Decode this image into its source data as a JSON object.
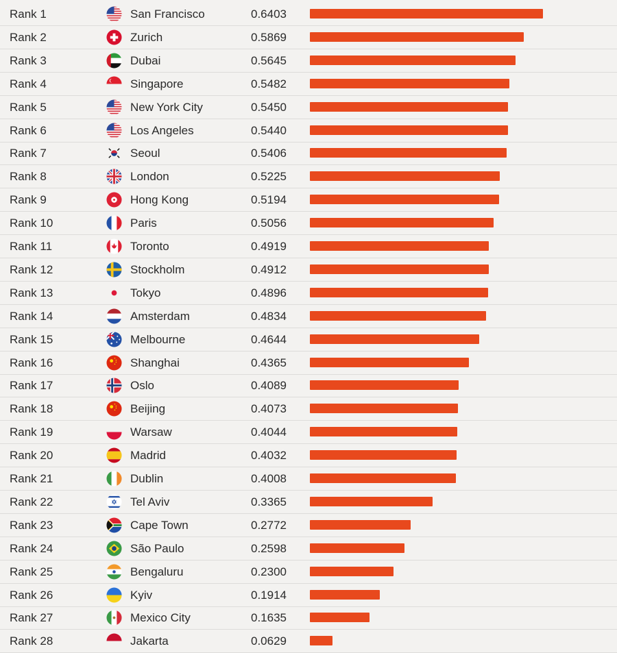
{
  "chart_data": {
    "type": "bar",
    "orientation": "horizontal",
    "title": "",
    "xlabel": "",
    "ylabel": "",
    "xlim": [
      0,
      1.0
    ],
    "grid": false,
    "bar_color": "#e8491d",
    "rows": [
      {
        "rank": "Rank 1",
        "city": "San Francisco",
        "flag": "us-flag-icon",
        "value": 0.6403,
        "label": "0.6403"
      },
      {
        "rank": "Rank 2",
        "city": "Zurich",
        "flag": "switzerland-flag-icon",
        "value": 0.5869,
        "label": "0.5869"
      },
      {
        "rank": "Rank 3",
        "city": "Dubai",
        "flag": "uae-flag-icon",
        "value": 0.5645,
        "label": "0.5645"
      },
      {
        "rank": "Rank 4",
        "city": "Singapore",
        "flag": "singapore-flag-icon",
        "value": 0.5482,
        "label": "0.5482"
      },
      {
        "rank": "Rank 5",
        "city": "New York City",
        "flag": "us-flag-icon",
        "value": 0.545,
        "label": "0.5450"
      },
      {
        "rank": "Rank 6",
        "city": "Los Angeles",
        "flag": "us-flag-icon",
        "value": 0.544,
        "label": "0.5440"
      },
      {
        "rank": "Rank 7",
        "city": "Seoul",
        "flag": "south-korea-flag-icon",
        "value": 0.5406,
        "label": "0.5406"
      },
      {
        "rank": "Rank 8",
        "city": "London",
        "flag": "uk-flag-icon",
        "value": 0.5225,
        "label": "0.5225"
      },
      {
        "rank": "Rank 9",
        "city": "Hong Kong",
        "flag": "hong-kong-flag-icon",
        "value": 0.5194,
        "label": "0.5194"
      },
      {
        "rank": "Rank 10",
        "city": "Paris",
        "flag": "france-flag-icon",
        "value": 0.5056,
        "label": "0.5056"
      },
      {
        "rank": "Rank 11",
        "city": "Toronto",
        "flag": "canada-flag-icon",
        "value": 0.4919,
        "label": "0.4919"
      },
      {
        "rank": "Rank 12",
        "city": "Stockholm",
        "flag": "sweden-flag-icon",
        "value": 0.4912,
        "label": "0.4912"
      },
      {
        "rank": "Rank 13",
        "city": "Tokyo",
        "flag": "japan-flag-icon",
        "value": 0.4896,
        "label": "0.4896"
      },
      {
        "rank": "Rank 14",
        "city": "Amsterdam",
        "flag": "netherlands-flag-icon",
        "value": 0.4834,
        "label": "0.4834"
      },
      {
        "rank": "Rank 15",
        "city": "Melbourne",
        "flag": "australia-flag-icon",
        "value": 0.4644,
        "label": "0.4644"
      },
      {
        "rank": "Rank 16",
        "city": "Shanghai",
        "flag": "china-flag-icon",
        "value": 0.4365,
        "label": "0.4365"
      },
      {
        "rank": "Rank 17",
        "city": "Oslo",
        "flag": "norway-flag-icon",
        "value": 0.4089,
        "label": "0.4089"
      },
      {
        "rank": "Rank 18",
        "city": "Beijing",
        "flag": "china-flag-icon",
        "value": 0.4073,
        "label": "0.4073"
      },
      {
        "rank": "Rank 19",
        "city": "Warsaw",
        "flag": "poland-flag-icon",
        "value": 0.4044,
        "label": "0.4044"
      },
      {
        "rank": "Rank 20",
        "city": "Madrid",
        "flag": "spain-flag-icon",
        "value": 0.4032,
        "label": "0.4032"
      },
      {
        "rank": "Rank 21",
        "city": "Dublin",
        "flag": "ireland-flag-icon",
        "value": 0.4008,
        "label": "0.4008"
      },
      {
        "rank": "Rank 22",
        "city": "Tel Aviv",
        "flag": "israel-flag-icon",
        "value": 0.3365,
        "label": "0.3365"
      },
      {
        "rank": "Rank 23",
        "city": "Cape Town",
        "flag": "south-africa-flag-icon",
        "value": 0.2772,
        "label": "0.2772"
      },
      {
        "rank": "Rank 24",
        "city": "São Paulo",
        "flag": "brazil-flag-icon",
        "value": 0.2598,
        "label": "0.2598"
      },
      {
        "rank": "Rank 25",
        "city": "Bengaluru",
        "flag": "india-flag-icon",
        "value": 0.23,
        "label": "0.2300"
      },
      {
        "rank": "Rank 26",
        "city": "Kyiv",
        "flag": "ukraine-flag-icon",
        "value": 0.1914,
        "label": "0.1914"
      },
      {
        "rank": "Rank 27",
        "city": "Mexico City",
        "flag": "mexico-flag-icon",
        "value": 0.1635,
        "label": "0.1635"
      },
      {
        "rank": "Rank 28",
        "city": "Jakarta",
        "flag": "indonesia-flag-icon",
        "value": 0.0629,
        "label": "0.0629"
      }
    ]
  }
}
